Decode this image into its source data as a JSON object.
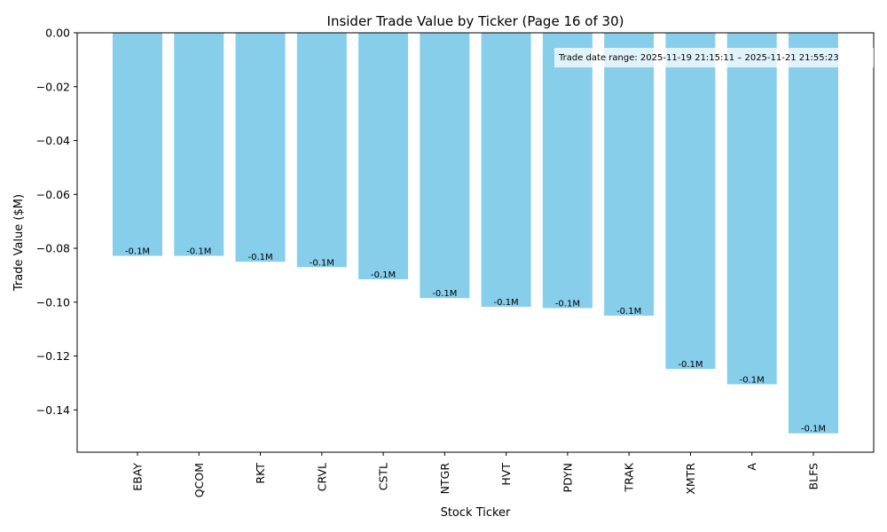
{
  "chart_data": {
    "type": "bar",
    "title": "Insider Trade Value by Ticker (Page 16 of 30)",
    "xlabel": "Stock Ticker",
    "ylabel": "Trade Value ($M)",
    "categories": [
      "EBAY",
      "QCOM",
      "RKT",
      "CRVL",
      "CSTL",
      "NTGR",
      "HVT",
      "PDYN",
      "TRAK",
      "XMTR",
      "A",
      "BLFS"
    ],
    "values": [
      -0.0828,
      -0.0828,
      -0.085,
      -0.087,
      -0.0915,
      -0.0985,
      -0.1017,
      -0.1022,
      -0.105,
      -0.1248,
      -0.1305,
      -0.1487
    ],
    "data_labels": [
      "-0.1M",
      "-0.1M",
      "-0.1M",
      "-0.1M",
      "-0.1M",
      "-0.1M",
      "-0.1M",
      "-0.1M",
      "-0.1M",
      "-0.1M",
      "-0.1M",
      "-0.1M"
    ],
    "ylim": [
      -0.1557,
      0
    ],
    "yticks": [
      0,
      -0.02,
      -0.04,
      -0.06,
      -0.08,
      -0.1,
      -0.12,
      -0.14
    ],
    "ytick_labels": [
      "0.00",
      "−0.02",
      "−0.04",
      "−0.06",
      "−0.08",
      "−0.10",
      "−0.12",
      "−0.14"
    ],
    "grid": false,
    "legend": "none",
    "bar_color": "#87ceeb",
    "annotation": "Trade date range: 2025-11-19 21:15:11 – 2025-11-21 21:55:23"
  }
}
